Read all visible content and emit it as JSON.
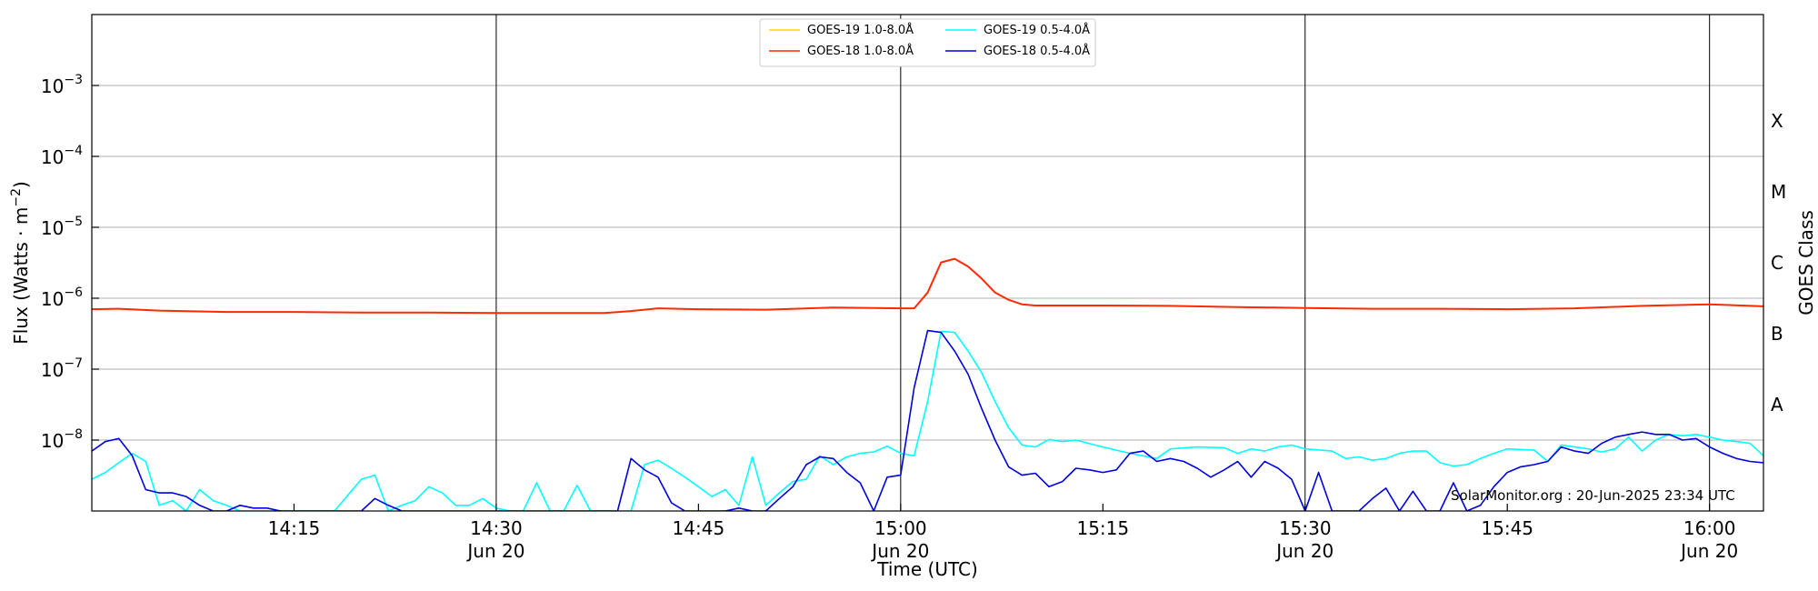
{
  "chart_data": {
    "type": "line",
    "xlabel": "Time (UTC)",
    "ylabel": "Flux (Watts · m⁻²)",
    "y2label": "GOES Class",
    "yscale": "log",
    "xlim": [
      "14:00",
      "16:04"
    ],
    "ylim": [
      1e-09,
      0.01
    ],
    "grid": "horizontal",
    "legend_position": "top-center",
    "x_ticks": [
      {
        "time": "14:15",
        "label": "14:15",
        "date": ""
      },
      {
        "time": "14:30",
        "label": "14:30",
        "date": "Jun 20"
      },
      {
        "time": "14:45",
        "label": "14:45",
        "date": ""
      },
      {
        "time": "15:00",
        "label": "15:00",
        "date": "Jun 20"
      },
      {
        "time": "15:15",
        "label": "15:15",
        "date": ""
      },
      {
        "time": "15:30",
        "label": "15:30",
        "date": "Jun 20"
      },
      {
        "time": "15:45",
        "label": "15:45",
        "date": ""
      },
      {
        "time": "16:00",
        "label": "16:00",
        "date": "Jun 20"
      }
    ],
    "y_ticks": [
      {
        "value": 1e-08,
        "base": "10",
        "exp": "−8"
      },
      {
        "value": 1e-07,
        "base": "10",
        "exp": "−7"
      },
      {
        "value": 1e-06,
        "base": "10",
        "exp": "−6"
      },
      {
        "value": 1e-05,
        "base": "10",
        "exp": "−5"
      },
      {
        "value": 0.0001,
        "base": "10",
        "exp": "−4"
      },
      {
        "value": 0.001,
        "base": "10",
        "exp": "−3"
      }
    ],
    "goes_classes": [
      {
        "label": "A",
        "value": 3.16e-08
      },
      {
        "label": "B",
        "value": 3.16e-07
      },
      {
        "label": "C",
        "value": 3.16e-06
      },
      {
        "label": "M",
        "value": 3.16e-05
      },
      {
        "label": "X",
        "value": 0.000316
      }
    ],
    "vertical_markers": [
      "14:30",
      "15:00",
      "15:30",
      "16:00"
    ],
    "watermark": "SolarMonitor.org : 20-Jun-2025 23:34 UTC",
    "series": [
      {
        "name": "GOES-19 1.0-8.0Å",
        "color": "#ffd700",
        "points": []
      },
      {
        "name": "GOES-18 1.0-8.0Å",
        "color": "#ff2a00",
        "points": [
          [
            "14:00",
            7e-07
          ],
          [
            "14:02",
            7.1e-07
          ],
          [
            "14:05",
            6.7e-07
          ],
          [
            "14:10",
            6.4e-07
          ],
          [
            "14:15",
            6.4e-07
          ],
          [
            "14:20",
            6.3e-07
          ],
          [
            "14:25",
            6.3e-07
          ],
          [
            "14:30",
            6.2e-07
          ],
          [
            "14:35",
            6.2e-07
          ],
          [
            "14:38",
            6.2e-07
          ],
          [
            "14:40",
            6.6e-07
          ],
          [
            "14:42",
            7.2e-07
          ],
          [
            "14:45",
            7e-07
          ],
          [
            "14:50",
            6.9e-07
          ],
          [
            "14:55",
            7.4e-07
          ],
          [
            "14:58",
            7.3e-07
          ],
          [
            "15:00",
            7.2e-07
          ],
          [
            "15:01",
            7.2e-07
          ],
          [
            "15:02",
            1.2e-06
          ],
          [
            "15:03",
            3.2e-06
          ],
          [
            "15:04",
            3.6e-06
          ],
          [
            "15:05",
            2.8e-06
          ],
          [
            "15:06",
            1.9e-06
          ],
          [
            "15:07",
            1.2e-06
          ],
          [
            "15:08",
            9.5e-07
          ],
          [
            "15:09",
            8.2e-07
          ],
          [
            "15:10",
            7.9e-07
          ],
          [
            "15:15",
            7.9e-07
          ],
          [
            "15:20",
            7.8e-07
          ],
          [
            "15:25",
            7.5e-07
          ],
          [
            "15:30",
            7.3e-07
          ],
          [
            "15:35",
            7.1e-07
          ],
          [
            "15:40",
            7.1e-07
          ],
          [
            "15:45",
            7e-07
          ],
          [
            "15:50",
            7.2e-07
          ],
          [
            "15:55",
            7.8e-07
          ],
          [
            "16:00",
            8.2e-07
          ],
          [
            "16:04",
            7.7e-07
          ]
        ]
      },
      {
        "name": "GOES-19 0.5-4.0Å",
        "color": "#00ffff",
        "points": [
          [
            "14:00",
            2.8e-09
          ],
          [
            "14:01",
            3.5e-09
          ],
          [
            "14:02",
            4.8e-09
          ],
          [
            "14:03",
            6.5e-09
          ],
          [
            "14:04",
            5e-09
          ],
          [
            "14:05",
            1.2e-09
          ],
          [
            "14:06",
            1.4e-09
          ],
          [
            "14:07",
            1e-09
          ],
          [
            "14:08",
            2e-09
          ],
          [
            "14:09",
            1.4e-09
          ],
          [
            "14:10",
            1.2e-09
          ],
          [
            "14:11",
            1e-09
          ],
          [
            "14:12",
            1e-09
          ],
          [
            "14:13",
            1e-09
          ],
          [
            "14:15",
            1e-09
          ],
          [
            "14:18",
            1e-09
          ],
          [
            "14:20",
            2.8e-09
          ],
          [
            "14:21",
            3.2e-09
          ],
          [
            "14:22",
            1e-09
          ],
          [
            "14:23",
            1.2e-09
          ],
          [
            "14:24",
            1.4e-09
          ],
          [
            "14:25",
            2.2e-09
          ],
          [
            "14:26",
            1.8e-09
          ],
          [
            "14:27",
            1.2e-09
          ],
          [
            "14:28",
            1.2e-09
          ],
          [
            "14:29",
            1.5e-09
          ],
          [
            "14:30",
            1.1e-09
          ],
          [
            "14:31",
            1e-09
          ],
          [
            "14:32",
            1e-09
          ],
          [
            "14:33",
            2.5e-09
          ],
          [
            "14:34",
            1e-09
          ],
          [
            "14:35",
            1e-09
          ],
          [
            "14:36",
            2.3e-09
          ],
          [
            "14:37",
            1e-09
          ],
          [
            "14:40",
            1e-09
          ],
          [
            "14:41",
            4.5e-09
          ],
          [
            "14:42",
            5.2e-09
          ],
          [
            "14:43",
            4e-09
          ],
          [
            "14:44",
            3e-09
          ],
          [
            "14:45",
            2.2e-09
          ],
          [
            "14:46",
            1.6e-09
          ],
          [
            "14:47",
            2e-09
          ],
          [
            "14:48",
            1.2e-09
          ],
          [
            "14:49",
            5.8e-09
          ],
          [
            "14:50",
            1.2e-09
          ],
          [
            "14:51",
            1.8e-09
          ],
          [
            "14:52",
            2.6e-09
          ],
          [
            "14:53",
            2.8e-09
          ],
          [
            "14:54",
            6e-09
          ],
          [
            "14:55",
            4.5e-09
          ],
          [
            "14:56",
            5.8e-09
          ],
          [
            "14:57",
            6.5e-09
          ],
          [
            "14:58",
            6.8e-09
          ],
          [
            "14:59",
            8.2e-09
          ],
          [
            "15:00",
            6.5e-09
          ],
          [
            "15:01",
            6e-09
          ],
          [
            "15:02",
            3.5e-08
          ],
          [
            "15:03",
            3.4e-07
          ],
          [
            "15:04",
            3.3e-07
          ],
          [
            "15:05",
            1.8e-07
          ],
          [
            "15:06",
            9e-08
          ],
          [
            "15:07",
            3.5e-08
          ],
          [
            "15:08",
            1.5e-08
          ],
          [
            "15:09",
            8.5e-09
          ],
          [
            "15:10",
            8e-09
          ],
          [
            "15:11",
            1.02e-08
          ],
          [
            "15:12",
            9.5e-09
          ],
          [
            "15:13",
            1e-08
          ],
          [
            "15:15",
            8e-09
          ],
          [
            "15:17",
            6.5e-09
          ],
          [
            "15:19",
            5.5e-09
          ],
          [
            "15:20",
            7.5e-09
          ],
          [
            "15:22",
            8e-09
          ],
          [
            "15:24",
            7.8e-09
          ],
          [
            "15:25",
            6.5e-09
          ],
          [
            "15:26",
            7.5e-09
          ],
          [
            "15:27",
            7e-09
          ],
          [
            "15:28",
            8e-09
          ],
          [
            "15:29",
            8.5e-09
          ],
          [
            "15:30",
            7.5e-09
          ],
          [
            "15:32",
            7e-09
          ],
          [
            "15:33",
            5.5e-09
          ],
          [
            "15:34",
            5.8e-09
          ],
          [
            "15:35",
            5.2e-09
          ],
          [
            "15:36",
            5.5e-09
          ],
          [
            "15:37",
            6.5e-09
          ],
          [
            "15:38",
            7e-09
          ],
          [
            "15:39",
            7e-09
          ],
          [
            "15:40",
            4.8e-09
          ],
          [
            "15:41",
            4.3e-09
          ],
          [
            "15:42",
            4.5e-09
          ],
          [
            "15:43",
            5.5e-09
          ],
          [
            "15:44",
            6.5e-09
          ],
          [
            "15:45",
            7.5e-09
          ],
          [
            "15:47",
            7.2e-09
          ],
          [
            "15:48",
            5e-09
          ],
          [
            "15:49",
            8.5e-09
          ],
          [
            "15:50",
            8e-09
          ],
          [
            "15:51",
            7.5e-09
          ],
          [
            "15:52",
            6.8e-09
          ],
          [
            "15:53",
            7.5e-09
          ],
          [
            "15:54",
            1.1e-08
          ],
          [
            "15:55",
            7e-09
          ],
          [
            "15:56",
            1e-08
          ],
          [
            "15:57",
            1.2e-08
          ],
          [
            "15:58",
            1.15e-08
          ],
          [
            "15:59",
            1.2e-08
          ],
          [
            "16:00",
            1.1e-08
          ],
          [
            "16:01",
            1e-08
          ],
          [
            "16:02",
            9.5e-09
          ],
          [
            "16:03",
            9e-09
          ],
          [
            "16:04",
            6e-09
          ]
        ]
      },
      {
        "name": "GOES-18 0.5-4.0Å",
        "color": "#0000dd",
        "points": [
          [
            "14:00",
            7e-09
          ],
          [
            "14:01",
            9.5e-09
          ],
          [
            "14:02",
            1.05e-08
          ],
          [
            "14:03",
            6e-09
          ],
          [
            "14:04",
            2e-09
          ],
          [
            "14:05",
            1.8e-09
          ],
          [
            "14:06",
            1.8e-09
          ],
          [
            "14:07",
            1.6e-09
          ],
          [
            "14:08",
            1.2e-09
          ],
          [
            "14:09",
            1e-09
          ],
          [
            "14:10",
            1e-09
          ],
          [
            "14:11",
            1.2e-09
          ],
          [
            "14:12",
            1.1e-09
          ],
          [
            "14:13",
            1.1e-09
          ],
          [
            "14:14",
            1e-09
          ],
          [
            "14:20",
            1e-09
          ],
          [
            "14:21",
            1.5e-09
          ],
          [
            "14:22",
            1.2e-09
          ],
          [
            "14:23",
            1e-09
          ],
          [
            "14:38",
            1e-09
          ],
          [
            "14:39",
            1e-09
          ],
          [
            "14:40",
            5.5e-09
          ],
          [
            "14:41",
            3.8e-09
          ],
          [
            "14:42",
            3e-09
          ],
          [
            "14:43",
            1.3e-09
          ],
          [
            "14:44",
            1e-09
          ],
          [
            "14:47",
            1e-09
          ],
          [
            "14:48",
            1.1e-09
          ],
          [
            "14:49",
            1e-09
          ],
          [
            "14:50",
            1e-09
          ],
          [
            "14:51",
            1.5e-09
          ],
          [
            "14:52",
            2.2e-09
          ],
          [
            "14:53",
            4.5e-09
          ],
          [
            "14:54",
            5.8e-09
          ],
          [
            "14:55",
            5.5e-09
          ],
          [
            "14:56",
            3.5e-09
          ],
          [
            "14:57",
            2.5e-09
          ],
          [
            "14:58",
            1e-09
          ],
          [
            "14:59",
            3e-09
          ],
          [
            "15:00",
            3.2e-09
          ],
          [
            "15:01",
            5.5e-08
          ],
          [
            "15:02",
            3.5e-07
          ],
          [
            "15:03",
            3.3e-07
          ],
          [
            "15:04",
            1.8e-07
          ],
          [
            "15:05",
            8.5e-08
          ],
          [
            "15:06",
            2.8e-08
          ],
          [
            "15:07",
            1e-08
          ],
          [
            "15:08",
            4.2e-09
          ],
          [
            "15:09",
            3.2e-09
          ],
          [
            "15:10",
            3.4e-09
          ],
          [
            "15:11",
            2.2e-09
          ],
          [
            "15:12",
            2.6e-09
          ],
          [
            "15:13",
            4e-09
          ],
          [
            "15:14",
            3.8e-09
          ],
          [
            "15:15",
            3.5e-09
          ],
          [
            "15:16",
            3.8e-09
          ],
          [
            "15:17",
            6.5e-09
          ],
          [
            "15:18",
            7e-09
          ],
          [
            "15:19",
            5e-09
          ],
          [
            "15:20",
            5.5e-09
          ],
          [
            "15:21",
            5e-09
          ],
          [
            "15:22",
            4e-09
          ],
          [
            "15:23",
            3e-09
          ],
          [
            "15:24",
            3.8e-09
          ],
          [
            "15:25",
            5e-09
          ],
          [
            "15:26",
            3e-09
          ],
          [
            "15:27",
            5e-09
          ],
          [
            "15:28",
            4e-09
          ],
          [
            "15:29",
            2.8e-09
          ],
          [
            "15:30",
            1e-09
          ],
          [
            "15:31",
            3.5e-09
          ],
          [
            "15:32",
            1e-09
          ],
          [
            "15:33",
            1e-09
          ],
          [
            "15:34",
            1e-09
          ],
          [
            "15:35",
            1.5e-09
          ],
          [
            "15:36",
            2.1e-09
          ],
          [
            "15:37",
            1e-09
          ],
          [
            "15:38",
            1.9e-09
          ],
          [
            "15:39",
            1e-09
          ],
          [
            "15:40",
            1e-09
          ],
          [
            "15:41",
            2.5e-09
          ],
          [
            "15:42",
            1e-09
          ],
          [
            "15:43",
            1.2e-09
          ],
          [
            "15:44",
            2.2e-09
          ],
          [
            "15:45",
            3.5e-09
          ],
          [
            "15:46",
            4.2e-09
          ],
          [
            "15:47",
            4.5e-09
          ],
          [
            "15:48",
            5e-09
          ],
          [
            "15:49",
            8e-09
          ],
          [
            "15:50",
            7e-09
          ],
          [
            "15:51",
            6.5e-09
          ],
          [
            "15:52",
            9e-09
          ],
          [
            "15:53",
            1.1e-08
          ],
          [
            "15:54",
            1.2e-08
          ],
          [
            "15:55",
            1.3e-08
          ],
          [
            "15:56",
            1.2e-08
          ],
          [
            "15:57",
            1.2e-08
          ],
          [
            "15:58",
            1e-08
          ],
          [
            "15:59",
            1.05e-08
          ],
          [
            "16:00",
            8e-09
          ],
          [
            "16:01",
            6.5e-09
          ],
          [
            "16:02",
            5.5e-09
          ],
          [
            "16:03",
            5e-09
          ],
          [
            "16:04",
            4.8e-09
          ]
        ]
      }
    ]
  }
}
